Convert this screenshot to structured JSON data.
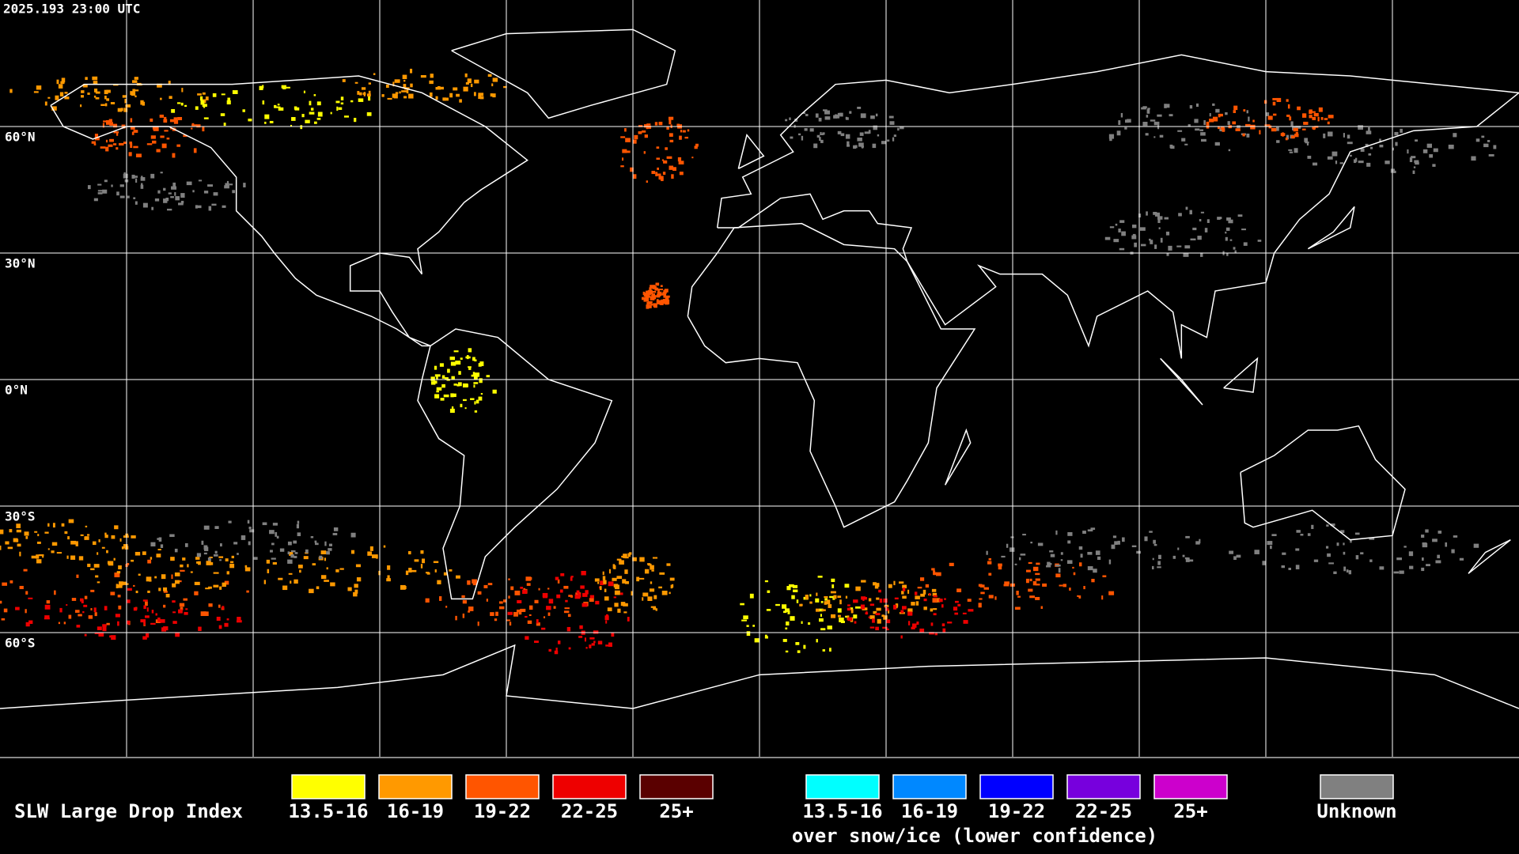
{
  "timestamp": "2025.193 23:00 UTC",
  "latitude_labels": [
    "60°N",
    "30°N",
    "0°N",
    "30°S",
    "60°S"
  ],
  "legend": {
    "title": "SLW Large Drop Index",
    "items": [
      {
        "label": "13.5-16",
        "color": "#ffff00"
      },
      {
        "label": "16-19",
        "color": "#ff9900"
      },
      {
        "label": "19-22",
        "color": "#ff5500"
      },
      {
        "label": "22-25",
        "color": "#ee0000"
      },
      {
        "label": "25+",
        "color": "#5a0000"
      }
    ],
    "snow_items": [
      {
        "label": "13.5-16",
        "color": "#00ffff"
      },
      {
        "label": "16-19",
        "color": "#0088ff"
      },
      {
        "label": "19-22",
        "color": "#0000ff"
      },
      {
        "label": "22-25",
        "color": "#7700dd"
      },
      {
        "label": "25+",
        "color": "#cc00cc"
      }
    ],
    "snow_caption": "over snow/ice (lower confidence)",
    "unknown": {
      "label": "Unknown",
      "color": "#808080"
    }
  }
}
